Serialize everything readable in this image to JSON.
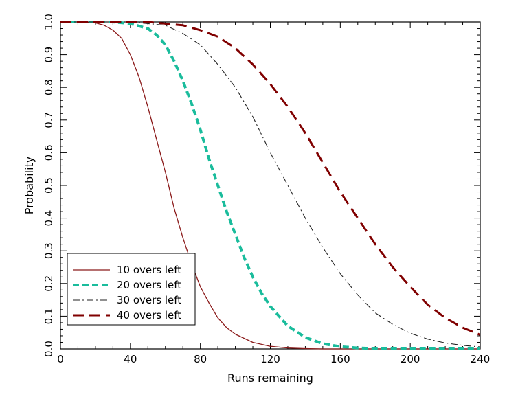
{
  "chart_data": {
    "type": "line",
    "xlabel": "Runs remaining",
    "ylabel": "Probability",
    "xlim": [
      0,
      240
    ],
    "ylim": [
      0.0,
      1.0
    ],
    "xticks": [
      "0",
      "40",
      "80",
      "120",
      "160",
      "200",
      "240"
    ],
    "yticks": [
      "0.0",
      "0.1",
      "0.2",
      "0.3",
      "0.4",
      "0.5",
      "0.6",
      "0.7",
      "0.8",
      "0.9",
      "1.0"
    ],
    "grid": false,
    "legend_position": "bottom-left",
    "series": [
      {
        "name": "10 overs left",
        "color": "#8b1a1a",
        "style": "solid",
        "x": [
          0,
          10,
          20,
          25,
          30,
          35,
          40,
          45,
          50,
          55,
          60,
          65,
          70,
          75,
          80,
          85,
          90,
          95,
          100,
          110,
          120,
          130,
          140,
          150,
          160,
          200,
          240
        ],
        "y": [
          1.0,
          1.0,
          0.997,
          0.99,
          0.975,
          0.95,
          0.9,
          0.83,
          0.74,
          0.64,
          0.54,
          0.43,
          0.34,
          0.26,
          0.19,
          0.14,
          0.095,
          0.065,
          0.045,
          0.02,
          0.008,
          0.003,
          0.001,
          0.0,
          0.0,
          0.0,
          0.0
        ]
      },
      {
        "name": "20 overs left",
        "color": "#1abc9c",
        "style": "dashed",
        "x": [
          0,
          20,
          30,
          40,
          50,
          55,
          60,
          65,
          70,
          75,
          80,
          85,
          90,
          95,
          100,
          105,
          110,
          115,
          120,
          130,
          140,
          150,
          160,
          170,
          180,
          200,
          240
        ],
        "y": [
          1.0,
          1.0,
          1.0,
          0.995,
          0.98,
          0.96,
          0.93,
          0.88,
          0.82,
          0.75,
          0.67,
          0.58,
          0.5,
          0.42,
          0.35,
          0.28,
          0.22,
          0.17,
          0.13,
          0.07,
          0.035,
          0.016,
          0.007,
          0.003,
          0.001,
          0.0,
          0.0
        ]
      },
      {
        "name": "30 overs left",
        "color": "#222222",
        "style": "dashdot",
        "x": [
          0,
          40,
          50,
          60,
          70,
          80,
          90,
          100,
          110,
          120,
          130,
          140,
          150,
          160,
          170,
          180,
          190,
          200,
          210,
          220,
          230,
          240
        ],
        "y": [
          1.0,
          1.0,
          0.995,
          0.99,
          0.965,
          0.93,
          0.87,
          0.8,
          0.71,
          0.6,
          0.5,
          0.4,
          0.31,
          0.23,
          0.165,
          0.11,
          0.075,
          0.048,
          0.03,
          0.018,
          0.011,
          0.006
        ]
      },
      {
        "name": "40 overs left",
        "color": "#800000",
        "style": "longdash",
        "x": [
          0,
          50,
          60,
          70,
          80,
          90,
          100,
          110,
          120,
          130,
          140,
          150,
          160,
          170,
          180,
          190,
          200,
          210,
          220,
          230,
          240
        ],
        "y": [
          1.0,
          1.0,
          0.995,
          0.99,
          0.975,
          0.955,
          0.92,
          0.87,
          0.81,
          0.74,
          0.66,
          0.57,
          0.48,
          0.4,
          0.32,
          0.25,
          0.19,
          0.135,
          0.095,
          0.065,
          0.043
        ]
      }
    ]
  }
}
